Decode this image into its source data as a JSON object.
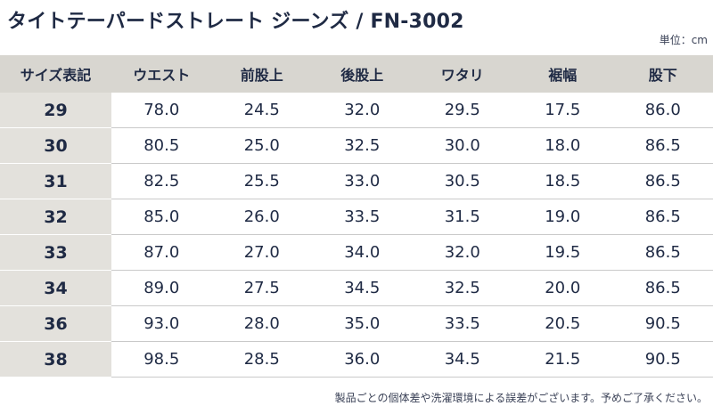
{
  "title": "タイトテーパードストレート ジーンズ / FN-3002",
  "unit": "単位：cm",
  "table": {
    "headers": [
      "サイズ表記",
      "ウエスト",
      "前股上",
      "後股上",
      "ワタリ",
      "裾幅",
      "股下"
    ],
    "rows": [
      [
        "29",
        "78.0",
        "24.5",
        "32.0",
        "29.5",
        "17.5",
        "86.0"
      ],
      [
        "30",
        "80.5",
        "25.0",
        "32.5",
        "30.0",
        "18.0",
        "86.5"
      ],
      [
        "31",
        "82.5",
        "25.5",
        "33.0",
        "30.5",
        "18.5",
        "86.5"
      ],
      [
        "32",
        "85.0",
        "26.0",
        "33.5",
        "31.5",
        "19.0",
        "86.5"
      ],
      [
        "33",
        "87.0",
        "27.0",
        "34.0",
        "32.0",
        "19.5",
        "86.5"
      ],
      [
        "34",
        "89.0",
        "27.5",
        "34.5",
        "32.5",
        "20.0",
        "86.5"
      ],
      [
        "36",
        "93.0",
        "28.0",
        "35.0",
        "33.5",
        "20.5",
        "90.5"
      ],
      [
        "38",
        "98.5",
        "28.5",
        "36.0",
        "34.5",
        "21.5",
        "90.5"
      ]
    ]
  },
  "note": "製品ごとの個体差や洗濯環境による誤差がございます。予めご了承ください。"
}
